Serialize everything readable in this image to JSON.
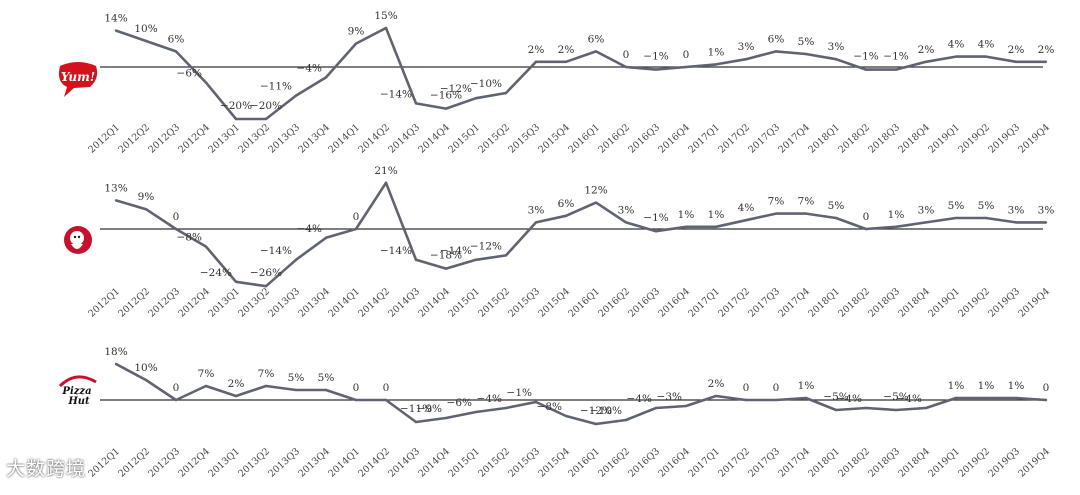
{
  "watermark": "大数跨境",
  "chart_data": [
    {
      "type": "line",
      "brand_logo": "yum-logo",
      "logo_text": "Yum!",
      "categories": [
        "2012Q1",
        "2012Q2",
        "2012Q3",
        "2012Q4",
        "2013Q1",
        "2013Q2",
        "2013Q3",
        "2013Q4",
        "2014Q1",
        "2014Q2",
        "2014Q3",
        "2014Q4",
        "2015Q1",
        "2015Q2",
        "2015Q3",
        "2015Q4",
        "2016Q1",
        "2016Q2",
        "2016Q3",
        "2016Q4",
        "2017Q1",
        "2017Q2",
        "2017Q3",
        "2017Q4",
        "2018Q1",
        "2018Q2",
        "2018Q3",
        "2018Q4",
        "2019Q1",
        "2019Q2",
        "2019Q3",
        "2019Q4"
      ],
      "values": [
        14,
        10,
        6,
        -6,
        -20,
        -20,
        -11,
        -4,
        9,
        15,
        -14,
        -16,
        -12,
        -10,
        2,
        2,
        6,
        0,
        -1,
        0,
        1,
        3,
        6,
        5,
        3,
        -1,
        -1,
        2,
        4,
        4,
        2,
        2
      ],
      "labels": [
        "14%",
        "10%",
        "6%",
        "−6%",
        "−20%",
        "−20%",
        "−11%",
        "−4%",
        "9%",
        "15%",
        "−14%",
        "−16%",
        "−12%",
        "−10%",
        "2%",
        "2%",
        "6%",
        "0",
        "−1%",
        "0",
        "1%",
        "3%",
        "6%",
        "5%",
        "3%",
        "−1%",
        "−1%",
        "2%",
        "4%",
        "4%",
        "2%",
        "2%"
      ],
      "unit": "%",
      "line_color": "#5f6470",
      "zero_line": true
    },
    {
      "type": "line",
      "brand_logo": "kfc-logo",
      "logo_text": "KFC",
      "categories": [
        "2012Q1",
        "2012Q2",
        "2012Q3",
        "2012Q4",
        "2013Q1",
        "2013Q2",
        "2013Q3",
        "2013Q4",
        "2014Q1",
        "2014Q2",
        "2014Q3",
        "2014Q4",
        "2015Q1",
        "2015Q2",
        "2015Q3",
        "2015Q4",
        "2016Q1",
        "2016Q2",
        "2016Q3",
        "2016Q4",
        "2017Q1",
        "2017Q2",
        "2017Q3",
        "2017Q4",
        "2018Q1",
        "2018Q2",
        "2018Q3",
        "2018Q4",
        "2019Q1",
        "2019Q2",
        "2019Q3",
        "2019Q4"
      ],
      "values": [
        13,
        9,
        0,
        -8,
        -24,
        -26,
        -14,
        -4,
        0,
        21,
        -14,
        -18,
        -14,
        -12,
        3,
        6,
        12,
        3,
        -1,
        1,
        1,
        4,
        7,
        7,
        5,
        0,
        1,
        3,
        5,
        5,
        3,
        3
      ],
      "labels": [
        "13%",
        "9%",
        "0",
        "−8%",
        "−24%",
        "−26%",
        "−14%",
        "−4%",
        "0",
        "21%",
        "−14%",
        "−18%",
        "−14%",
        "−12%",
        "3%",
        "6%",
        "12%",
        "3%",
        "−1%",
        "1%",
        "1%",
        "4%",
        "7%",
        "7%",
        "5%",
        "0",
        "1%",
        "3%",
        "5%",
        "5%",
        "3%",
        "3%"
      ],
      "unit": "%",
      "line_color": "#5f6470",
      "zero_line": true
    },
    {
      "type": "line",
      "brand_logo": "pizza-hut-logo",
      "logo_text": "Pizza Hut",
      "categories": [
        "2012Q1",
        "2012Q2",
        "2012Q3",
        "2012Q4",
        "2013Q1",
        "2013Q2",
        "2013Q3",
        "2013Q4",
        "2014Q1",
        "2014Q2",
        "2014Q3",
        "2014Q4",
        "2015Q1",
        "2015Q2",
        "2015Q3",
        "2015Q4",
        "2016Q1",
        "2016Q2",
        "2016Q3",
        "2016Q4",
        "2017Q1",
        "2017Q2",
        "2017Q3",
        "2017Q4",
        "2018Q1",
        "2018Q2",
        "2018Q3",
        "2018Q4",
        "2019Q1",
        "2019Q2",
        "2019Q3",
        "2019Q4"
      ],
      "values": [
        18,
        10,
        0,
        7,
        2,
        7,
        5,
        5,
        0,
        0,
        -11,
        -9,
        -6,
        -4,
        -1,
        -8,
        -12,
        -10,
        -4,
        -3,
        2,
        0,
        0,
        1,
        -5,
        -4,
        -5,
        -4,
        1,
        1,
        1,
        0
      ],
      "labels": [
        "18%",
        "10%",
        "0",
        "7%",
        "2%",
        "7%",
        "5%",
        "5%",
        "0",
        "0",
        "−11%",
        "−9%",
        "−6%",
        "−4%",
        "−1%",
        "−8%",
        "−12%",
        "−10%",
        "−4%",
        "−3%",
        "2%",
        "0",
        "0",
        "1%",
        "−5%",
        "−4%",
        "−5%",
        "−4%",
        "1%",
        "1%",
        "1%",
        "0"
      ],
      "unit": "%",
      "line_color": "#5f6470",
      "zero_line": true
    }
  ]
}
